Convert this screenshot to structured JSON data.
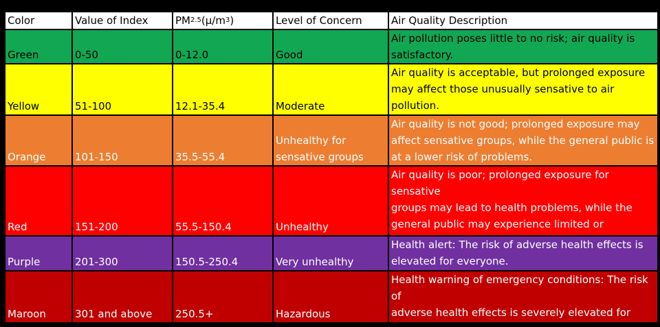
{
  "headers": {
    "color": "Color",
    "index": "Value of Index",
    "pm_main": "PM",
    "pm_sub": "2.5",
    "pm_unit_open": " (μ/m",
    "pm_sup": "3",
    "pm_unit_close": ")",
    "concern": "Level of Concern",
    "description": "Air Quality Description"
  },
  "rows": [
    {
      "color": "Green",
      "index": "0-50",
      "pm": "0-12.0",
      "concern": "Good",
      "description": "Air pollution poses little to no risk; air quality is\nsatisfactory.",
      "bg": "#12A753",
      "fg": "#000000"
    },
    {
      "color": "Yellow",
      "index": "51-100",
      "pm": "12.1-35.4",
      "concern": "Moderate",
      "description": "Air quality is acceptable, but prolonged exposure\nmay affect those unusually sensative to air\npollution.",
      "bg": "#FFFF00",
      "fg": "#000000"
    },
    {
      "color": "Orange",
      "index": "101-150",
      "pm": "35.5-55.4",
      "concern": "Unhealthy for\nsensative groups",
      "description": "Air quality is not good; prolonged exposure may\naffect sensative groups, while the general public is\nat a lower risk of problems.",
      "bg": "#ED7D31",
      "fg": "#FFFFFF"
    },
    {
      "color": "Red",
      "index": "151-200",
      "pm": "55.5-150.4",
      "concern": "Unhealthy",
      "description": "Air quality is poor; prolonged exposure for sensative\ngroups may lead to health problems, while the\ngeneral public may experience limited or\ntemporary health problems.",
      "bg": "#FF0000",
      "fg": "#FFFFFF"
    },
    {
      "color": "Purple",
      "index": "201-300",
      "pm": "150.5-250.4",
      "concern": "Very unhealthy",
      "description": "Health alert: The risk of adverse health effects is\nelevated for everyone.",
      "bg": "#7030A0",
      "fg": "#FFFFFF"
    },
    {
      "color": "Maroon",
      "index": "301 and above",
      "pm": "250.5+",
      "concern": "Hazardous",
      "description": "Health warning of emergency conditions: The risk of\nadverse health effects is severely elevated for\neveryone.",
      "bg": "#C00000",
      "fg": "#FFFFFF"
    }
  ]
}
